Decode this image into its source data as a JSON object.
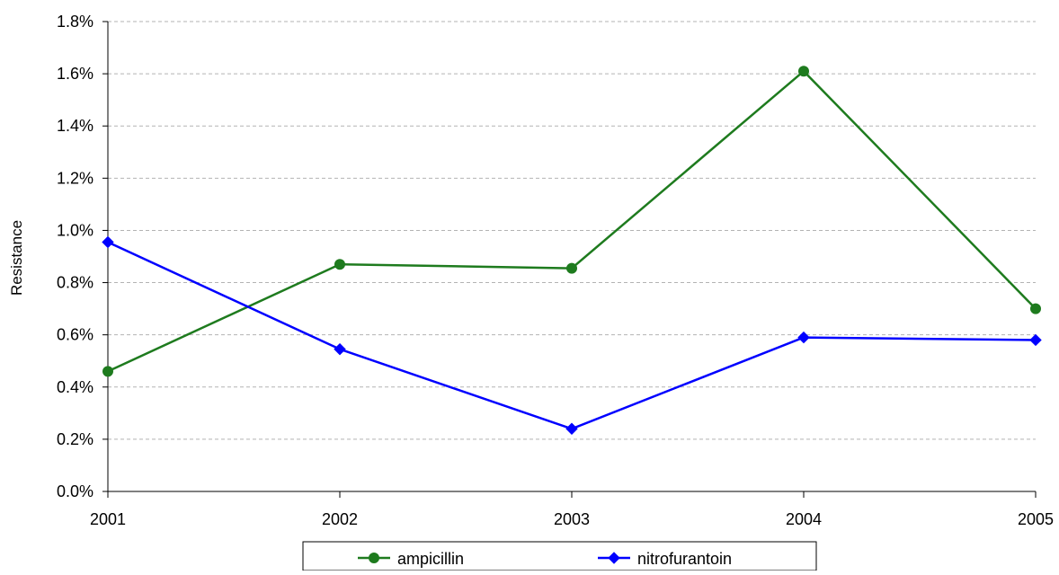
{
  "chart_data": {
    "type": "line",
    "title": "",
    "xlabel": "",
    "ylabel": "Resistance",
    "categories": [
      "2001",
      "2002",
      "2003",
      "2004",
      "2005"
    ],
    "ylim": [
      0,
      1.8
    ],
    "ytick_values": [
      0,
      0.2,
      0.4,
      0.6,
      0.8,
      1.0,
      1.2,
      1.4,
      1.6,
      1.8
    ],
    "ytick_labels": [
      "0.0%",
      "0.2%",
      "0.4%",
      "0.6%",
      "0.8%",
      "1.0%",
      "1.2%",
      "1.4%",
      "1.6%",
      "1.8%"
    ],
    "y_unit": "%",
    "grid": "horizontal dashed",
    "legend_position": "bottom",
    "series": [
      {
        "name": "ampicillin",
        "values": [
          0.46,
          0.87,
          0.855,
          1.61,
          0.7
        ],
        "color": "#1e7b1e",
        "marker": "circle"
      },
      {
        "name": "nitrofurantoin",
        "values": [
          0.955,
          0.545,
          0.24,
          0.59,
          0.58
        ],
        "color": "#0000ff",
        "marker": "diamond"
      }
    ]
  }
}
